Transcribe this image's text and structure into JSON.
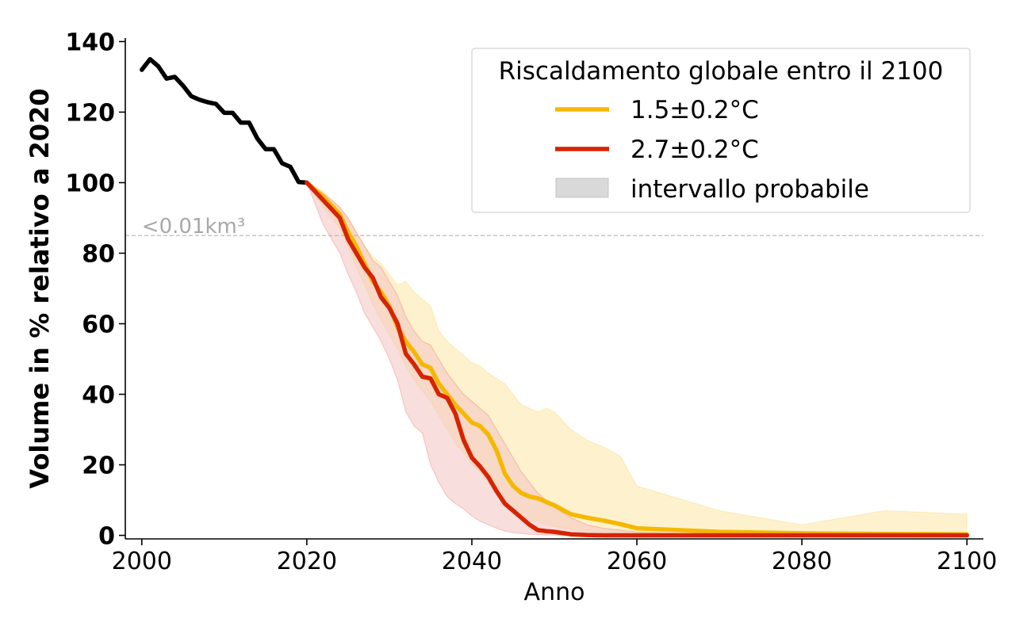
{
  "chart_data": {
    "type": "line",
    "xlabel": "Anno",
    "ylabel": "Volume in % relativo a 2020",
    "xlim": [
      1998,
      2102
    ],
    "ylim": [
      -1,
      141
    ],
    "xticks": [
      2000,
      2020,
      2040,
      2060,
      2080,
      2100
    ],
    "yticks": [
      0,
      20,
      40,
      60,
      80,
      100,
      120,
      140
    ],
    "grid": false,
    "legend": {
      "title": "Riscaldamento globale entro il 2100",
      "placement": "top-right",
      "entries": [
        "1.5±0.2°C",
        "2.7±0.2°C",
        "intervallo probabile"
      ]
    },
    "threshold": {
      "y": 85,
      "label": "<0.01km³",
      "color": "#bbbbbb"
    },
    "historical": {
      "color": "#000000",
      "x": [
        2000,
        2001,
        2002,
        2003,
        2004,
        2005,
        2006,
        2007,
        2008,
        2009,
        2010,
        2011,
        2012,
        2013,
        2014,
        2015,
        2016,
        2017,
        2018,
        2019,
        2020
      ],
      "y": [
        132,
        135,
        133,
        129.5,
        130,
        127.5,
        124.5,
        123.5,
        122.8,
        122.3,
        119.8,
        119.8,
        117,
        117,
        112.5,
        109.5,
        109.5,
        105.5,
        104.5,
        100.2,
        100
      ]
    },
    "series": [
      {
        "name": "1.5±0.2°C",
        "color": "#f5b800",
        "band_color": "#fde7a5",
        "x": [
          2020,
          2022,
          2024,
          2025,
          2026,
          2027,
          2028,
          2029,
          2030,
          2031,
          2032,
          2033,
          2034,
          2035,
          2036,
          2037,
          2038,
          2039,
          2040,
          2041,
          2042,
          2043,
          2044,
          2045,
          2046,
          2047,
          2048,
          2049,
          2050,
          2052,
          2054,
          2056,
          2058,
          2060,
          2065,
          2070,
          2080,
          2090,
          2100
        ],
        "y": [
          100,
          96,
          91,
          86,
          82,
          77,
          72,
          69,
          65,
          59,
          55,
          52,
          48.5,
          47.5,
          43,
          40,
          37,
          34.5,
          32,
          31,
          28.5,
          24,
          17.5,
          14,
          12,
          11,
          10.5,
          9.5,
          8.5,
          6,
          5,
          4.2,
          3.2,
          2,
          1.5,
          1,
          0.6,
          0.4,
          0.3
        ],
        "band_low": [
          100,
          93,
          87,
          82,
          76,
          71,
          65.5,
          61,
          57,
          53,
          48,
          44,
          41,
          38,
          34,
          30,
          26,
          23.5,
          20,
          18,
          15,
          12,
          9,
          7,
          5.5,
          4.5,
          3.8,
          3,
          2.5,
          1.7,
          1.2,
          0.9,
          0.6,
          0.4,
          0.2,
          0.1,
          0,
          0,
          0
        ],
        "band_high": [
          100,
          97.5,
          93,
          90,
          86,
          82,
          79,
          77,
          74,
          71,
          72,
          69,
          67,
          65,
          58,
          55,
          53,
          51,
          49,
          48,
          46,
          44.5,
          43,
          40,
          37,
          36,
          35,
          36,
          35,
          30,
          27,
          25,
          22.5,
          14,
          10.5,
          7,
          3,
          7,
          6
        ]
      },
      {
        "name": "2.7±0.2°C",
        "color": "#d62400",
        "band_color": "#f3c2c0",
        "x": [
          2020,
          2022,
          2024,
          2025,
          2026,
          2027,
          2028,
          2029,
          2030,
          2031,
          2032,
          2033,
          2034,
          2035,
          2036,
          2037,
          2038,
          2039,
          2040,
          2041,
          2042,
          2043,
          2044,
          2045,
          2046,
          2047,
          2048,
          2049,
          2050,
          2052,
          2054,
          2056,
          2058,
          2060,
          2065,
          2070,
          2080,
          2090,
          2100
        ],
        "y": [
          100,
          95,
          90,
          84,
          80,
          76,
          73,
          67.5,
          64.5,
          60,
          51.5,
          48.5,
          45,
          44.5,
          40,
          39,
          34.5,
          27,
          22,
          19.5,
          16.5,
          12.5,
          9,
          7,
          5,
          3,
          1.5,
          1.2,
          1,
          0.3,
          0.1,
          0,
          0,
          0,
          0,
          0,
          0,
          0,
          0
        ],
        "band_low": [
          100,
          88,
          80,
          74,
          69,
          63,
          59,
          55,
          50,
          44,
          35,
          31,
          29,
          20,
          15,
          11,
          9,
          7.5,
          5.5,
          4,
          3,
          2,
          1.2,
          0.8,
          0.5,
          0.3,
          0.2,
          0.1,
          0.05,
          0,
          0,
          0,
          0,
          0,
          0,
          0,
          0,
          0,
          0
        ],
        "band_high": [
          100,
          97,
          93,
          90,
          86,
          82,
          78,
          76,
          72,
          68,
          62,
          58,
          55,
          54,
          50,
          46,
          43,
          40,
          38,
          36,
          34,
          30,
          26,
          22,
          18,
          15,
          12,
          10,
          8,
          5,
          3,
          2,
          1.5,
          1,
          0.6,
          0.3,
          0.1,
          0,
          0
        ]
      }
    ]
  }
}
